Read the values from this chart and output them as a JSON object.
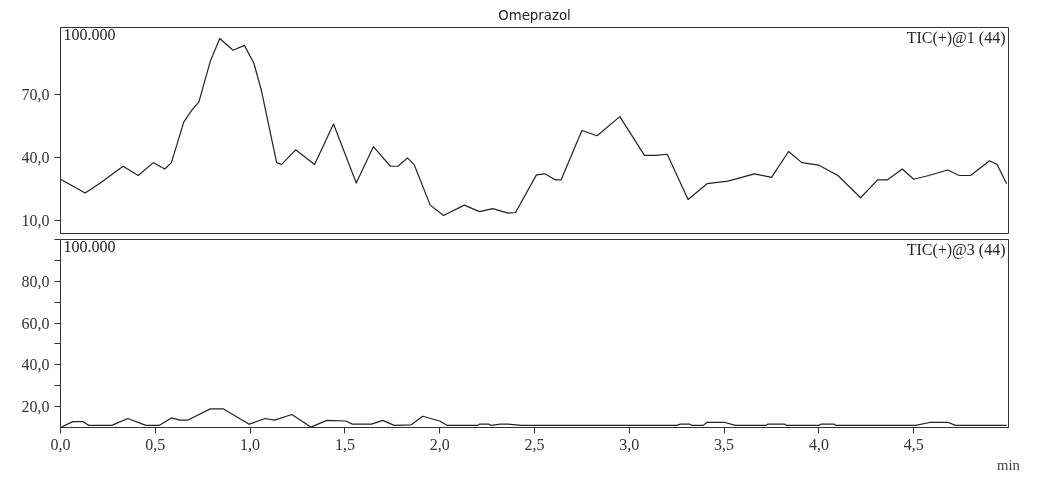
{
  "chart_data": [
    {
      "type": "line",
      "title": "Omeprazol",
      "annotations": [
        "100.000",
        "TIC(+)@1 (44)"
      ],
      "xlim": [
        0,
        5
      ],
      "ylim": [
        4,
        102
      ],
      "yticks": [
        {
          "value": 10,
          "label": "10,0"
        },
        {
          "value": 40,
          "label": "40,0"
        },
        {
          "value": 70,
          "label": "70,0"
        }
      ],
      "tick_labels": "y",
      "grid": false,
      "line_style": "solid",
      "series": [
        {
          "color": "#222222",
          "x": [
            0,
            0.13,
            0.21,
            0.33,
            0.41,
            0.49,
            0.55,
            0.585,
            0.65,
            0.69,
            0.73,
            0.79,
            0.84,
            0.91,
            0.97,
            1.02,
            1.06,
            1.14,
            1.165,
            1.24,
            1.34,
            1.44,
            1.56,
            1.65,
            1.74,
            1.78,
            1.83,
            1.865,
            1.95,
            2.02,
            2.13,
            2.21,
            2.28,
            2.36,
            2.4,
            2.51,
            2.555,
            2.61,
            2.64,
            2.75,
            2.83,
            2.95,
            3.08,
            3.14,
            3.2,
            3.31,
            3.41,
            3.52,
            3.66,
            3.75,
            3.84,
            3.91,
            4.0,
            4.1,
            4.22,
            4.31,
            4.36,
            4.44,
            4.5,
            4.58,
            4.68,
            4.74,
            4.8,
            4.9,
            4.94,
            4.99
          ],
          "values": [
            29.8,
            23.3,
            28,
            36,
            31.6,
            37.7,
            34.7,
            37.7,
            57,
            62.3,
            66.6,
            85.9,
            96.8,
            91.2,
            93.5,
            85,
            71.9,
            37.7,
            36.8,
            43.8,
            36.8,
            56.1,
            28,
            45.3,
            36,
            36,
            40,
            36.8,
            17.5,
            12.6,
            17.5,
            14.4,
            15.8,
            13.7,
            14,
            31.9,
            32.4,
            29.5,
            29.5,
            53,
            50.5,
            59.6,
            41.2,
            41.2,
            41.7,
            20.2,
            27.7,
            28.9,
            32.4,
            30.7,
            43,
            37.7,
            36.5,
            31.6,
            21,
            29.5,
            29.5,
            34.7,
            29.8,
            31.6,
            34.2,
            31.6,
            31.6,
            38.6,
            36.8,
            27.7
          ]
        }
      ]
    },
    {
      "type": "line",
      "xlabel": "min",
      "annotations": [
        "100.000",
        "TIC(+)@3 (44)"
      ],
      "xlim": [
        0,
        5
      ],
      "ylim": [
        10,
        100
      ],
      "xticks": [
        {
          "value": 0,
          "label": "0,0"
        },
        {
          "value": 0.5,
          "label": "0,5"
        },
        {
          "value": 1,
          "label": "1,0"
        },
        {
          "value": 1.5,
          "label": "1,5"
        },
        {
          "value": 2,
          "label": "2,0"
        },
        {
          "value": 2.5,
          "label": "2,5"
        },
        {
          "value": 3,
          "label": "3,0"
        },
        {
          "value": 3.5,
          "label": "3,5"
        },
        {
          "value": 4,
          "label": "4,0"
        },
        {
          "value": 4.5,
          "label": "4,5"
        }
      ],
      "yticks": [
        {
          "value": 20,
          "label": "20,0"
        },
        {
          "value": 30,
          "label": null
        },
        {
          "value": 40,
          "label": "40,0"
        },
        {
          "value": 50,
          "label": null
        },
        {
          "value": 60,
          "label": "60,0"
        },
        {
          "value": 70,
          "label": null
        },
        {
          "value": 80,
          "label": "80,0"
        },
        {
          "value": 90,
          "label": null
        },
        {
          "value": 100,
          "label": null
        }
      ],
      "grid": false,
      "line_style": "solid",
      "series": [
        {
          "color": "#222222",
          "x": [
            0,
            0.065,
            0.12,
            0.15,
            0.27,
            0.355,
            0.45,
            0.52,
            0.585,
            0.63,
            0.67,
            0.79,
            0.86,
            0.995,
            1.08,
            1.13,
            1.22,
            1.32,
            1.405,
            1.505,
            1.54,
            1.64,
            1.7,
            1.76,
            1.85,
            1.91,
            2.0,
            2.04,
            2.2,
            2.21,
            2.26,
            2.27,
            2.32,
            2.36,
            2.43,
            3.25,
            3.27,
            3.32,
            3.33,
            3.39,
            3.41,
            3.5,
            3.56,
            3.72,
            3.73,
            3.82,
            3.83,
            4.0,
            4.01,
            4.08,
            4.09,
            4.51,
            4.59,
            4.68,
            4.72,
            4.99
          ],
          "values": [
            10,
            12.8,
            12.8,
            11,
            11,
            14.3,
            11,
            11,
            14.6,
            13.5,
            13.5,
            18.9,
            18.9,
            11.6,
            14.3,
            13.5,
            16.2,
            10.2,
            13.4,
            13.1,
            11.6,
            11.6,
            13.4,
            11,
            11.3,
            15.4,
            13.1,
            11,
            11,
            11.6,
            11.6,
            11,
            11.6,
            11.6,
            11,
            11,
            11.6,
            11.6,
            11,
            11,
            12.5,
            12.5,
            11,
            11,
            11.6,
            11.6,
            11,
            11,
            11.6,
            11.6,
            11,
            11,
            12.5,
            12.5,
            11,
            11
          ]
        }
      ]
    }
  ]
}
